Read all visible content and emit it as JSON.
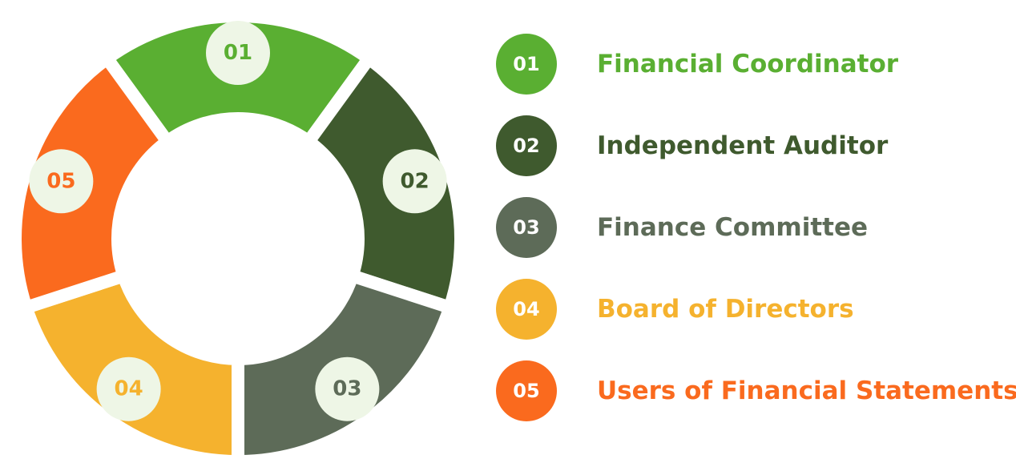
{
  "items": [
    {
      "number": "01",
      "label": "Financial Coordinator",
      "color": "#5aaf32"
    },
    {
      "number": "02",
      "label": "Independent Auditor",
      "color": "#3f5a2e"
    },
    {
      "number": "03",
      "label": "Finance Committee",
      "color": "#5d6b58"
    },
    {
      "number": "04",
      "label": "Board of Directors",
      "color": "#f5b22e"
    },
    {
      "number": "05",
      "label": "Users of Financial Statements",
      "color": "#fa6a1e"
    }
  ]
}
